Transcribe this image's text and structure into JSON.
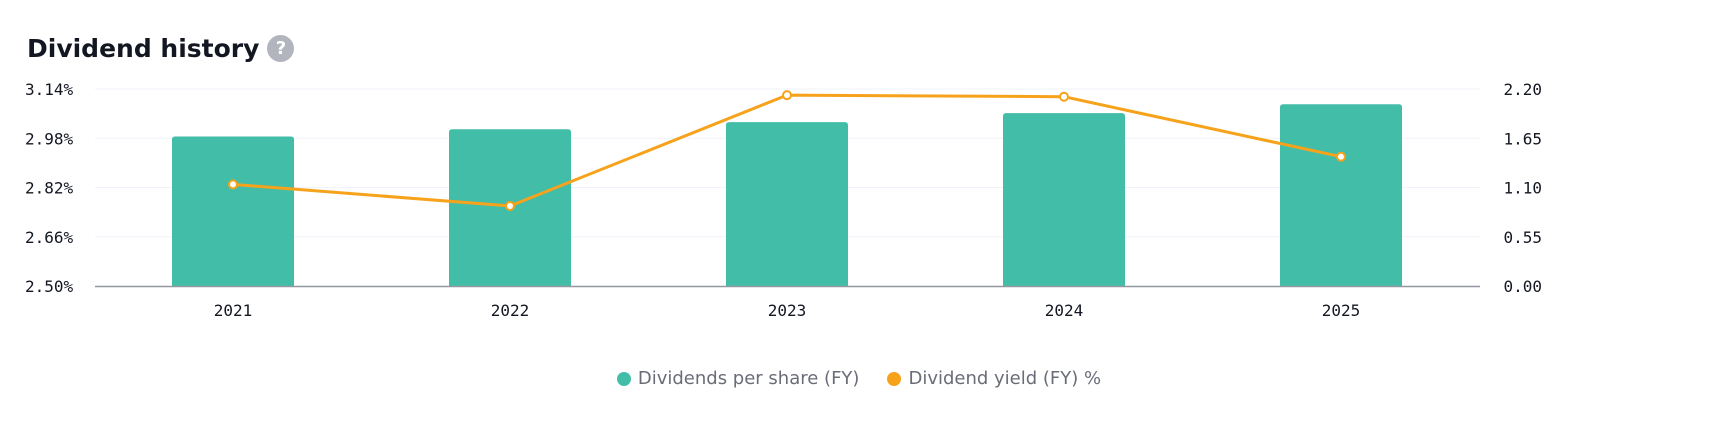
{
  "header": {
    "title": "Dividend history",
    "help_icon": "?"
  },
  "colors": {
    "bar": "#42bda8",
    "line": "#f7a21b",
    "grid": "#f0f3fa",
    "axis": "#9598a1"
  },
  "chart_data": {
    "type": "bar",
    "categories": [
      "2021",
      "2022",
      "2023",
      "2024",
      "2025"
    ],
    "series": [
      {
        "name": "Dividends per share (FY)",
        "type": "bar",
        "axis": "right",
        "values": [
          1.67,
          1.75,
          1.83,
          1.93,
          2.03
        ]
      },
      {
        "name": "Dividend yield (FY) %",
        "type": "line",
        "axis": "left",
        "values": [
          2.83,
          2.76,
          3.12,
          3.115,
          2.92
        ]
      }
    ],
    "y_left": {
      "ticks": [
        "3.14%",
        "2.98%",
        "2.82%",
        "2.66%",
        "2.50%"
      ],
      "range": [
        2.5,
        3.14
      ]
    },
    "y_right": {
      "ticks": [
        "2.20",
        "1.65",
        "1.10",
        "0.55",
        "0.00"
      ],
      "range": [
        0,
        2.2
      ]
    },
    "grid": true,
    "legend": "bottom-center"
  }
}
